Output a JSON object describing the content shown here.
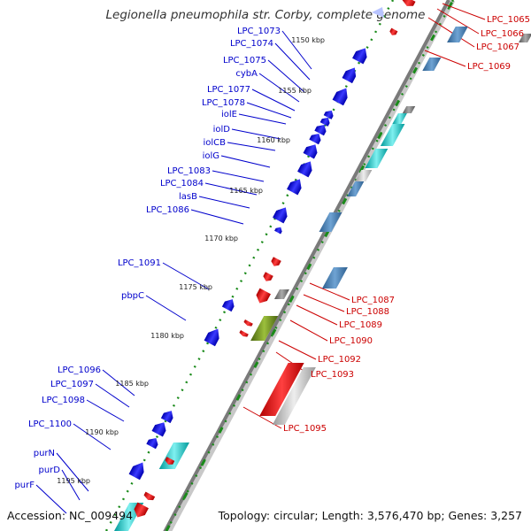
{
  "title": "Legionella pneumophila str. Corby, complete genome",
  "accession": "Accession: NC_009494",
  "topology": "Topology: circular; Length: 3,576,470 bp; Genes: 3,257",
  "colors": {
    "forward": "#0000ee",
    "reverse": "#ee0000",
    "backbone": "#8a8a8a",
    "ticks": "#1a8a1a",
    "left_label": "#0000cc",
    "right_label": "#cc0000",
    "steel": "#4a86b8",
    "teal": "#00bcbc",
    "olive": "#6b8a1e",
    "gray": "#777777",
    "silver": "#c0c0c0"
  },
  "kbp_ticks": [
    "1150 kbp",
    "1155 kbp",
    "1160 kbp",
    "1165 kbp",
    "1170 kbp",
    "1175 kbp",
    "1180 kbp",
    "1185 kbp",
    "1190 kbp",
    "1195 kbp"
  ],
  "left_genes": [
    "LPC_1073",
    "LPC_1074",
    "LPC_1075",
    "cybA",
    "LPC_1077",
    "LPC_1078",
    "iolE",
    "iolD",
    "iolCB",
    "iolG",
    "LPC_1083",
    "LPC_1084",
    "lasB",
    "LPC_1086",
    "LPC_1091",
    "pbpC",
    "LPC_1096",
    "LPC_1097",
    "LPC_1098",
    "LPC_1100",
    "purN",
    "purD",
    "purF"
  ],
  "right_genes": [
    "LPC_1065",
    "LPC_1066",
    "LPC_1067",
    "LPC_1069",
    "LPC_1087",
    "LPC_1088",
    "LPC_1089",
    "LPC_1090",
    "LPC_1092",
    "LPC_1093",
    "LPC_1095"
  ]
}
